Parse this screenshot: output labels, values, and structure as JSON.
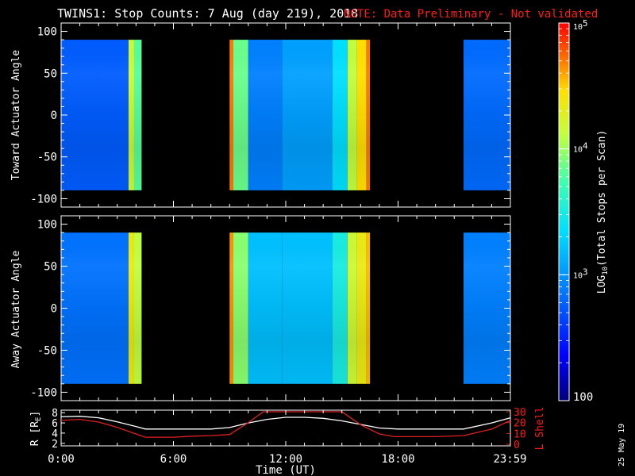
{
  "title": "TWINS1: Stop Counts:  7 Aug (day 219), 2018",
  "note": "NOTE: Data Preliminary - Not validated",
  "stamp": "25 May 19",
  "colors": {
    "note": "#ff2020",
    "white_line": "#ffffff",
    "red_line": "#e02020",
    "frame": "#ffffff",
    "background": "#000000"
  },
  "chart_data": [
    {
      "type": "heatmap",
      "name": "toward",
      "ylabel": "Toward Actuator Angle",
      "ylim": [
        -110,
        110
      ],
      "yticks": [
        100,
        50,
        0,
        -50,
        -100
      ],
      "xlim": [
        0,
        24
      ],
      "angle_range": [
        -90,
        90
      ],
      "segments": [
        {
          "start": 0.0,
          "end": 3.6,
          "level": 0.25
        },
        {
          "start": 3.6,
          "end": 3.9,
          "level": 0.72
        },
        {
          "start": 3.9,
          "end": 4.3,
          "level": 0.6
        },
        {
          "start": 9.0,
          "end": 9.2,
          "level": 0.9
        },
        {
          "start": 9.2,
          "end": 10.0,
          "level": 0.62
        },
        {
          "start": 10.0,
          "end": 11.8,
          "level": 0.3
        },
        {
          "start": 11.8,
          "end": 14.5,
          "level": 0.35
        },
        {
          "start": 14.5,
          "end": 15.3,
          "level": 0.45
        },
        {
          "start": 15.3,
          "end": 15.8,
          "level": 0.7
        },
        {
          "start": 15.8,
          "end": 16.3,
          "level": 0.82
        },
        {
          "start": 16.3,
          "end": 16.5,
          "level": 0.9
        },
        {
          "start": 21.5,
          "end": 23.99,
          "level": 0.27
        }
      ]
    },
    {
      "type": "heatmap",
      "name": "away",
      "ylabel": "Away Actuator Angle",
      "ylim": [
        -110,
        110
      ],
      "yticks": [
        100,
        50,
        0,
        -50,
        -100
      ],
      "xlim": [
        0,
        24
      ],
      "angle_range": [
        -90,
        90
      ],
      "segments": [
        {
          "start": 0.0,
          "end": 3.6,
          "level": 0.28
        },
        {
          "start": 3.6,
          "end": 3.9,
          "level": 0.78
        },
        {
          "start": 3.9,
          "end": 4.3,
          "level": 0.7
        },
        {
          "start": 9.0,
          "end": 9.2,
          "level": 0.88
        },
        {
          "start": 9.2,
          "end": 10.0,
          "level": 0.65
        },
        {
          "start": 10.0,
          "end": 11.8,
          "level": 0.4
        },
        {
          "start": 11.8,
          "end": 14.5,
          "level": 0.4
        },
        {
          "start": 14.5,
          "end": 15.3,
          "level": 0.5
        },
        {
          "start": 15.3,
          "end": 15.8,
          "level": 0.72
        },
        {
          "start": 15.8,
          "end": 16.3,
          "level": 0.78
        },
        {
          "start": 16.3,
          "end": 16.5,
          "level": 0.85
        },
        {
          "start": 21.5,
          "end": 23.99,
          "level": 0.3
        }
      ]
    },
    {
      "type": "line",
      "name": "ephemeris",
      "ylabel_left": "R [R",
      "ylabel_left_sub": "E",
      "ylabel_left_close": "]",
      "ylabel_right": "L Shell",
      "ylim_left": [
        1.5,
        8.5
      ],
      "yticks_left": [
        8,
        6,
        4,
        2
      ],
      "ylim_right": [
        0,
        30
      ],
      "yticks_right": [
        30,
        20,
        10,
        0
      ],
      "xlabel": "Time (UT)",
      "xlim": [
        0,
        24
      ],
      "xticks": [
        0,
        6,
        12,
        18,
        23.98
      ],
      "xticklabels": [
        "0:00",
        "6:00",
        "12:00",
        "18:00",
        "23:59"
      ],
      "series": [
        {
          "color": "#ffffff",
          "axis": "left",
          "x": [
            0,
            1,
            2,
            3,
            4,
            4.5,
            6,
            8,
            9,
            10,
            11,
            12,
            13,
            14,
            15,
            16,
            17,
            18,
            20,
            21.5,
            23,
            24
          ],
          "y": [
            7.2,
            7.3,
            7.0,
            6.2,
            5.3,
            4.8,
            4.8,
            4.8,
            5.1,
            6.0,
            6.7,
            7.1,
            7.1,
            6.9,
            6.4,
            5.7,
            5.0,
            4.8,
            4.8,
            4.8,
            6.0,
            7.0
          ]
        },
        {
          "color": "#e02020",
          "axis": "right",
          "x": [
            0,
            1,
            2,
            3,
            4,
            4.5,
            6,
            7,
            8,
            9,
            10,
            10.8,
            15,
            15.5,
            16,
            17,
            17.8,
            20,
            21.5,
            23,
            24
          ],
          "y": [
            22,
            23,
            20.5,
            15.5,
            9.5,
            6.5,
            6.5,
            7.5,
            8,
            9,
            20,
            30,
            30,
            24,
            18,
            9.5,
            7,
            7,
            8,
            14,
            22
          ]
        }
      ]
    }
  ],
  "colorbar": {
    "title": "LOG",
    "title_sub": "10",
    "title_rest": "(Total Stops per Scan)",
    "ticks": [
      {
        "value": "10",
        "exp": "5"
      },
      {
        "value": "10",
        "exp": "4"
      },
      {
        "value": "10",
        "exp": "3"
      },
      {
        "value": "100",
        "exp": ""
      }
    ],
    "range_log": [
      2,
      5
    ]
  }
}
